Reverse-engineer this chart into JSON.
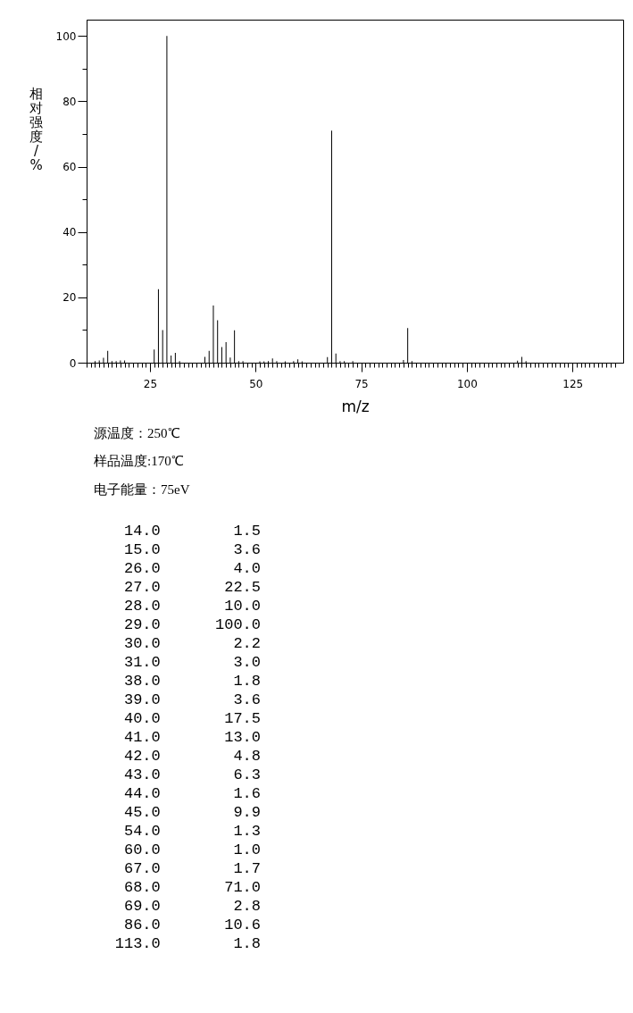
{
  "chart_data": [
    {
      "type": "bar",
      "xlabel": "m/z",
      "ylabel": "相对强度/%",
      "annotations": [
        "源温度：250℃",
        "样品温度:170℃",
        "电子能量：75eV"
      ],
      "color": "#000000",
      "x": [
        12.0,
        13.0,
        14.0,
        15.0,
        16.0,
        17.0,
        18.0,
        19.0,
        26.0,
        27.0,
        28.0,
        29.0,
        30.0,
        31.0,
        32.0,
        38.0,
        39.0,
        40.0,
        41.0,
        42.0,
        43.0,
        44.0,
        45.0,
        46.0,
        47.0,
        51.0,
        52.0,
        53.0,
        54.0,
        55.0,
        57.0,
        59.0,
        60.0,
        61.0,
        67.0,
        68.0,
        69.0,
        70.0,
        71.0,
        73.0,
        85.0,
        86.0,
        87.0,
        112.0,
        113.0,
        114.0
      ],
      "values": [
        0.5,
        0.7,
        1.5,
        3.6,
        0.5,
        0.5,
        0.7,
        0.7,
        4.0,
        22.5,
        10.0,
        100.0,
        2.2,
        3.0,
        0.5,
        1.8,
        3.6,
        17.5,
        13.0,
        4.8,
        6.3,
        1.6,
        9.9,
        0.5,
        0.5,
        0.4,
        0.4,
        0.5,
        1.3,
        0.5,
        0.4,
        0.5,
        1.0,
        0.4,
        1.7,
        71.0,
        2.8,
        0.5,
        0.5,
        0.5,
        0.8,
        10.6,
        0.5,
        0.6,
        1.8,
        0.5
      ],
      "xlim": [
        10,
        137
      ],
      "ylim": [
        0,
        105
      ],
      "yticks": [
        0,
        {
          "value": 10,
          "label": null
        },
        20,
        {
          "value": 30,
          "label": null
        },
        40,
        {
          "value": 50,
          "label": null
        },
        60,
        {
          "value": 70,
          "label": null
        },
        80,
        {
          "value": 90,
          "label": null
        },
        100
      ],
      "xticks": [
        {
          "value": 10,
          "label": null
        },
        {
          "value": 11,
          "label": null
        },
        {
          "value": 12,
          "label": null
        },
        {
          "value": 13,
          "label": null
        },
        {
          "value": 14,
          "label": null
        },
        {
          "value": 15,
          "label": null
        },
        {
          "value": 16,
          "label": null
        },
        {
          "value": 17,
          "label": null
        },
        {
          "value": 18,
          "label": null
        },
        {
          "value": 19,
          "label": null
        },
        {
          "value": 20,
          "label": null
        },
        {
          "value": 21,
          "label": null
        },
        {
          "value": 22,
          "label": null
        },
        {
          "value": 23,
          "label": null
        },
        {
          "value": 24,
          "label": null
        },
        25,
        {
          "value": 26,
          "label": null
        },
        {
          "value": 27,
          "label": null
        },
        {
          "value": 28,
          "label": null
        },
        {
          "value": 29,
          "label": null
        },
        {
          "value": 30,
          "label": null
        },
        {
          "value": 31,
          "label": null
        },
        {
          "value": 32,
          "label": null
        },
        {
          "value": 33,
          "label": null
        },
        {
          "value": 34,
          "label": null
        },
        {
          "value": 35,
          "label": null
        },
        {
          "value": 36,
          "label": null
        },
        {
          "value": 37,
          "label": null
        },
        {
          "value": 38,
          "label": null
        },
        {
          "value": 39,
          "label": null
        },
        {
          "value": 40,
          "label": null
        },
        {
          "value": 41,
          "label": null
        },
        {
          "value": 42,
          "label": null
        },
        {
          "value": 43,
          "label": null
        },
        {
          "value": 44,
          "label": null
        },
        {
          "value": 45,
          "label": null
        },
        {
          "value": 46,
          "label": null
        },
        {
          "value": 47,
          "label": null
        },
        {
          "value": 48,
          "label": null
        },
        {
          "value": 49,
          "label": null
        },
        50,
        {
          "value": 51,
          "label": null
        },
        {
          "value": 52,
          "label": null
        },
        {
          "value": 53,
          "label": null
        },
        {
          "value": 54,
          "label": null
        },
        {
          "value": 55,
          "label": null
        },
        {
          "value": 56,
          "label": null
        },
        {
          "value": 57,
          "label": null
        },
        {
          "value": 58,
          "label": null
        },
        {
          "value": 59,
          "label": null
        },
        {
          "value": 60,
          "label": null
        },
        {
          "value": 61,
          "label": null
        },
        {
          "value": 62,
          "label": null
        },
        {
          "value": 63,
          "label": null
        },
        {
          "value": 64,
          "label": null
        },
        {
          "value": 65,
          "label": null
        },
        {
          "value": 66,
          "label": null
        },
        {
          "value": 67,
          "label": null
        },
        {
          "value": 68,
          "label": null
        },
        {
          "value": 69,
          "label": null
        },
        {
          "value": 70,
          "label": null
        },
        {
          "value": 71,
          "label": null
        },
        {
          "value": 72,
          "label": null
        },
        {
          "value": 73,
          "label": null
        },
        {
          "value": 74,
          "label": null
        },
        75,
        {
          "value": 76,
          "label": null
        },
        {
          "value": 77,
          "label": null
        },
        {
          "value": 78,
          "label": null
        },
        {
          "value": 79,
          "label": null
        },
        {
          "value": 80,
          "label": null
        },
        {
          "value": 81,
          "label": null
        },
        {
          "value": 82,
          "label": null
        },
        {
          "value": 83,
          "label": null
        },
        {
          "value": 84,
          "label": null
        },
        {
          "value": 85,
          "label": null
        },
        {
          "value": 86,
          "label": null
        },
        {
          "value": 87,
          "label": null
        },
        {
          "value": 88,
          "label": null
        },
        {
          "value": 89,
          "label": null
        },
        {
          "value": 90,
          "label": null
        },
        {
          "value": 91,
          "label": null
        },
        {
          "value": 92,
          "label": null
        },
        {
          "value": 93,
          "label": null
        },
        {
          "value": 94,
          "label": null
        },
        {
          "value": 95,
          "label": null
        },
        {
          "value": 96,
          "label": null
        },
        {
          "value": 97,
          "label": null
        },
        {
          "value": 98,
          "label": null
        },
        {
          "value": 99,
          "label": null
        },
        100,
        {
          "value": 101,
          "label": null
        },
        {
          "value": 102,
          "label": null
        },
        {
          "value": 103,
          "label": null
        },
        {
          "value": 104,
          "label": null
        },
        {
          "value": 105,
          "label": null
        },
        {
          "value": 106,
          "label": null
        },
        {
          "value": 107,
          "label": null
        },
        {
          "value": 108,
          "label": null
        },
        {
          "value": 109,
          "label": null
        },
        {
          "value": 110,
          "label": null
        },
        {
          "value": 111,
          "label": null
        },
        {
          "value": 112,
          "label": null
        },
        {
          "value": 113,
          "label": null
        },
        {
          "value": 114,
          "label": null
        },
        {
          "value": 115,
          "label": null
        },
        {
          "value": 116,
          "label": null
        },
        {
          "value": 117,
          "label": null
        },
        {
          "value": 118,
          "label": null
        },
        {
          "value": 119,
          "label": null
        },
        {
          "value": 120,
          "label": null
        },
        {
          "value": 121,
          "label": null
        },
        {
          "value": 122,
          "label": null
        },
        {
          "value": 123,
          "label": null
        },
        {
          "value": 124,
          "label": null
        },
        125,
        {
          "value": 126,
          "label": null
        },
        {
          "value": 127,
          "label": null
        },
        {
          "value": 128,
          "label": null
        },
        {
          "value": 129,
          "label": null
        },
        {
          "value": 130,
          "label": null
        },
        {
          "value": 131,
          "label": null
        },
        {
          "value": 132,
          "label": null
        },
        {
          "value": 133,
          "label": null
        },
        {
          "value": 134,
          "label": null
        },
        {
          "value": 135,
          "label": null
        }
      ]
    },
    {
      "type": "other",
      "annotations": [
        "14.0        1.5",
        "15.0        3.6",
        "26.0        4.0",
        "27.0       22.5",
        "28.0       10.0",
        "29.0      100.0",
        "30.0        2.2",
        "31.0        3.0",
        "38.0        1.8",
        "39.0        3.6",
        "40.0       17.5",
        "41.0       13.0",
        "42.0        4.8",
        "43.0        6.3",
        "44.0        1.6",
        "45.0        9.9",
        "54.0        1.3",
        "60.0        1.0",
        "67.0        1.7",
        "68.0       71.0",
        "69.0        2.8",
        "86.0       10.6",
        "113.0        1.8"
      ]
    }
  ]
}
